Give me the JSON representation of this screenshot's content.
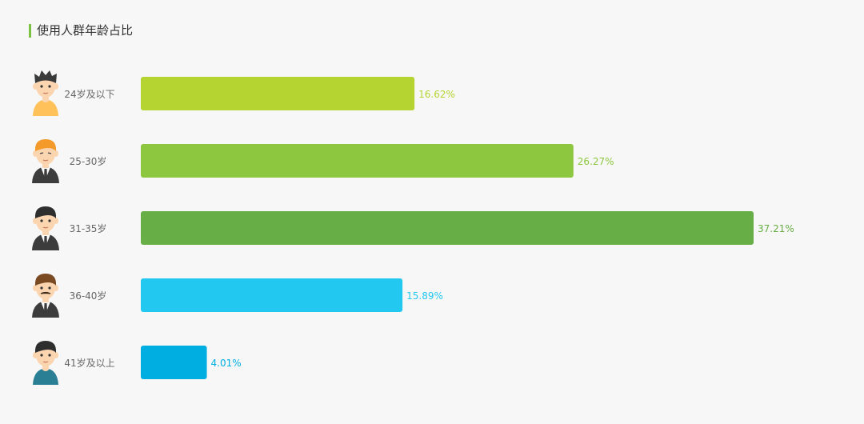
{
  "title": "使用人群年龄占比",
  "chart_data": {
    "type": "bar",
    "orientation": "horizontal",
    "title": "使用人群年龄占比",
    "categories": [
      "24岁及以下",
      "25-30岁",
      "31-35岁",
      "36-40岁",
      "41岁及以上"
    ],
    "values": [
      16.62,
      26.27,
      37.21,
      15.89,
      4.01
    ],
    "value_labels": [
      "16.62%",
      "26.27%",
      "37.21%",
      "15.89%",
      "4.01%"
    ],
    "unit": "%",
    "colors": [
      "#b5d432",
      "#8dc63f",
      "#66ae45",
      "#22c8f0",
      "#00aee1"
    ],
    "avatar_icons": [
      "young-man-avatar-icon",
      "ginger-man-avatar-icon",
      "suited-man-avatar-icon",
      "mustache-man-avatar-icon",
      "older-man-avatar-icon"
    ]
  }
}
